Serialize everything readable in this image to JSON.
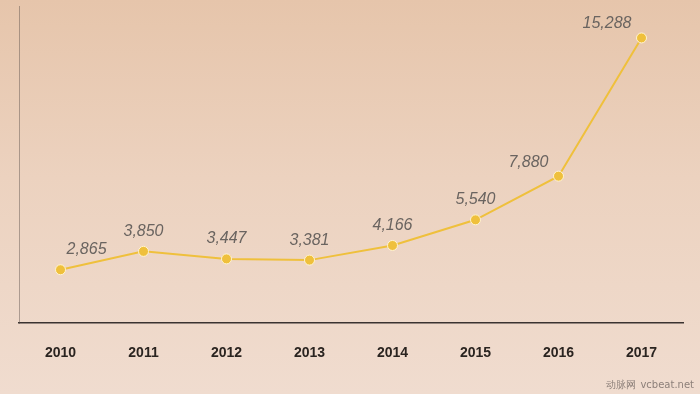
{
  "chart_data": {
    "type": "line",
    "categories": [
      "2010",
      "2011",
      "2012",
      "2013",
      "2014",
      "2015",
      "2016",
      "2017"
    ],
    "values": [
      2865,
      3850,
      3447,
      3381,
      4166,
      5540,
      7880,
      15288
    ],
    "value_labels": [
      "2,865",
      "3,850",
      "3,447",
      "3,381",
      "4,166",
      "5,540",
      "7,880",
      "15,288"
    ],
    "color": "#efc03c",
    "marker": "circle",
    "ylim": [
      0,
      17000
    ],
    "grid": false,
    "tick_labels": "x",
    "data_labels": true,
    "annotations": [
      "动脉网",
      "vcbeat.net"
    ]
  }
}
